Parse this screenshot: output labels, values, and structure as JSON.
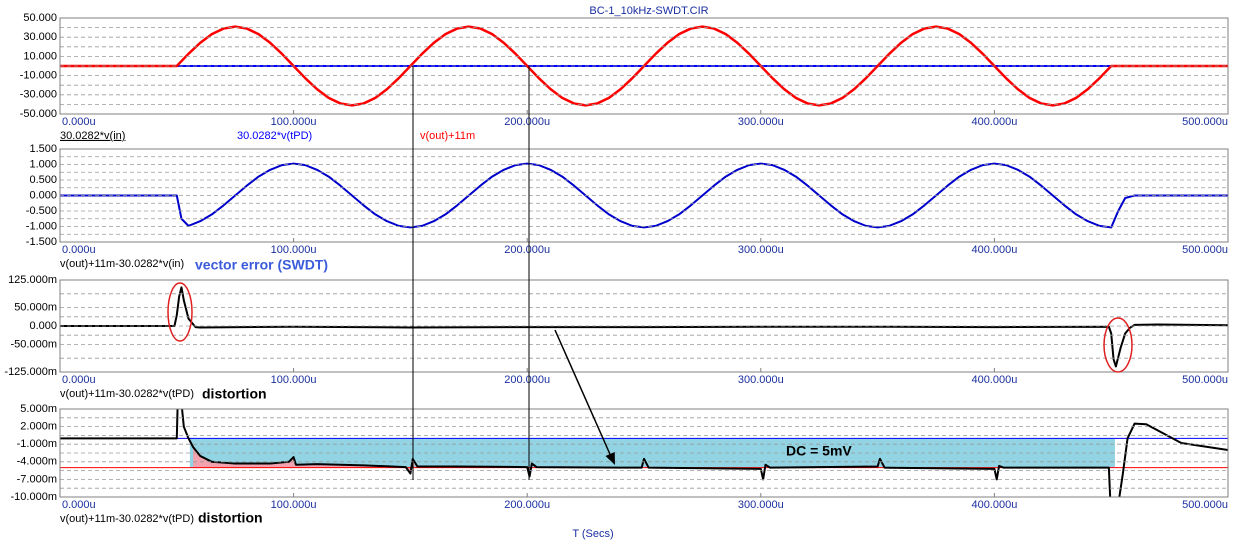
{
  "chart_data": [
    {
      "type": "line",
      "title": "BC-1_10kHz-SWDT.CIR",
      "xlim": [
        0,
        500
      ],
      "xticks": [
        {
          "value": 0,
          "label": "0.000u"
        },
        {
          "value": 100,
          "label": "100.000u"
        },
        {
          "value": 200,
          "label": "200.000u"
        },
        {
          "value": 300,
          "label": "300.000u"
        },
        {
          "value": 400,
          "label": "400.000u"
        },
        {
          "value": 500,
          "label": "500.000u"
        }
      ],
      "ylim": [
        -50,
        50
      ],
      "yticks": [
        {
          "value": 50,
          "label": "50.000"
        },
        {
          "value": 30,
          "label": "30.000"
        },
        {
          "value": 10,
          "label": "10.000"
        },
        {
          "value": -10,
          "label": "-10.000"
        },
        {
          "value": -30,
          "label": "-30.000"
        },
        {
          "value": -50,
          "label": "-50.000"
        }
      ],
      "grid": true,
      "series": [
        {
          "name": "30.0282*v(in)",
          "color": "#000000",
          "x": [
            0,
            50
          ],
          "values": [
            0,
            0
          ]
        },
        {
          "name": "30.0282*v(tPD)",
          "color": "#0000ff",
          "x": [
            0,
            452
          ],
          "values": [
            0,
            0
          ]
        },
        {
          "name": "v(out)+11m",
          "color": "#ff0000",
          "x": [
            0,
            50,
            55,
            60,
            65,
            70,
            75,
            80,
            85,
            90,
            95,
            100,
            105,
            110,
            115,
            120,
            125,
            130,
            135,
            140,
            145,
            150,
            155,
            160,
            165,
            170,
            175,
            180,
            185,
            190,
            195,
            200,
            205,
            210,
            215,
            220,
            225,
            230,
            235,
            240,
            245,
            250,
            255,
            260,
            265,
            270,
            275,
            280,
            285,
            290,
            295,
            300,
            305,
            310,
            315,
            320,
            325,
            330,
            335,
            340,
            345,
            350,
            355,
            360,
            365,
            370,
            375,
            380,
            385,
            390,
            395,
            400,
            405,
            410,
            415,
            420,
            425,
            430,
            435,
            440,
            445,
            450,
            500
          ],
          "values": [
            0,
            0,
            12.7,
            24.1,
            33.2,
            39.0,
            41,
            39.0,
            33.2,
            24.1,
            12.7,
            0,
            -12.7,
            -24.1,
            -33.2,
            -39.0,
            -41,
            -39.0,
            -33.2,
            -24.1,
            -12.7,
            0,
            12.7,
            24.1,
            33.2,
            39.0,
            41,
            39.0,
            33.2,
            24.1,
            12.7,
            0,
            -12.7,
            -24.1,
            -33.2,
            -39.0,
            -41,
            -39.0,
            -33.2,
            -24.1,
            -12.7,
            0,
            12.7,
            24.1,
            33.2,
            39.0,
            41,
            39.0,
            33.2,
            24.1,
            12.7,
            0,
            -12.7,
            -24.1,
            -33.2,
            -39.0,
            -41,
            -39.0,
            -33.2,
            -24.1,
            -12.7,
            0,
            12.7,
            24.1,
            33.2,
            39.0,
            41,
            39.0,
            33.2,
            24.1,
            12.7,
            0,
            -12.7,
            -24.1,
            -33.2,
            -39.0,
            -41,
            -39.0,
            -33.2,
            -24.1,
            -12.7,
            0,
            0
          ]
        }
      ]
    },
    {
      "type": "line",
      "xlim": [
        0,
        500
      ],
      "xticks": [
        {
          "value": 0,
          "label": "0.000u"
        },
        {
          "value": 100,
          "label": "100.000u"
        },
        {
          "value": 200,
          "label": "200.000u"
        },
        {
          "value": 300,
          "label": "300.000u"
        },
        {
          "value": 400,
          "label": "400.000u"
        },
        {
          "value": 500,
          "label": "500.000u"
        }
      ],
      "ylim": [
        -1.5,
        1.5
      ],
      "yticks": [
        {
          "value": 1.5,
          "label": "1.500"
        },
        {
          "value": 1,
          "label": "1.000"
        },
        {
          "value": 0.5,
          "label": "0.500"
        },
        {
          "value": 0,
          "label": "0.000"
        },
        {
          "value": -0.5,
          "label": "-0.500"
        },
        {
          "value": -1,
          "label": "-1.000"
        },
        {
          "value": -1.5,
          "label": "-1.500"
        }
      ],
      "grid": true,
      "annotations": [
        {
          "text": "vector error (SWDT)",
          "color": "#3b5bdb"
        }
      ],
      "series": [
        {
          "name": "v(out)+11m-30.0282*v(in)",
          "color": "#0000cc",
          "x": [
            0,
            50,
            52,
            55,
            60,
            65,
            70,
            75,
            80,
            85,
            90,
            95,
            100,
            105,
            110,
            115,
            120,
            125,
            130,
            135,
            140,
            145,
            150,
            155,
            160,
            165,
            170,
            175,
            180,
            185,
            190,
            195,
            200,
            205,
            210,
            215,
            220,
            225,
            230,
            235,
            240,
            245,
            250,
            255,
            260,
            265,
            270,
            275,
            280,
            285,
            290,
            295,
            300,
            305,
            310,
            315,
            320,
            325,
            330,
            335,
            340,
            345,
            350,
            355,
            360,
            365,
            370,
            375,
            380,
            385,
            390,
            395,
            400,
            405,
            410,
            415,
            420,
            425,
            430,
            435,
            440,
            445,
            450,
            453,
            456,
            460,
            500
          ],
          "values": [
            0,
            0,
            -0.75,
            -0.98,
            -0.83,
            -0.61,
            -0.32,
            0,
            0.32,
            0.61,
            0.83,
            0.98,
            1.03,
            0.98,
            0.83,
            0.61,
            0.32,
            0,
            -0.32,
            -0.61,
            -0.83,
            -0.98,
            -1.03,
            -0.98,
            -0.83,
            -0.61,
            -0.32,
            0,
            0.32,
            0.61,
            0.83,
            0.98,
            1.03,
            0.98,
            0.83,
            0.61,
            0.32,
            0,
            -0.32,
            -0.61,
            -0.83,
            -0.98,
            -1.03,
            -0.98,
            -0.83,
            -0.61,
            -0.32,
            0,
            0.32,
            0.61,
            0.83,
            0.98,
            1.03,
            0.98,
            0.83,
            0.61,
            0.32,
            0,
            -0.32,
            -0.61,
            -0.83,
            -0.98,
            -1.03,
            -0.98,
            -0.83,
            -0.61,
            -0.32,
            0,
            0.32,
            0.61,
            0.83,
            0.98,
            1.03,
            0.98,
            0.83,
            0.61,
            0.32,
            0,
            -0.32,
            -0.61,
            -0.83,
            -0.98,
            -1.03,
            -0.5,
            -0.08,
            0,
            0
          ]
        }
      ]
    },
    {
      "type": "line",
      "xlim": [
        0,
        500
      ],
      "xticks": [
        {
          "value": 0,
          "label": "0.000u"
        },
        {
          "value": 100,
          "label": "100.000u"
        },
        {
          "value": 200,
          "label": "200.000u"
        },
        {
          "value": 300,
          "label": "300.000u"
        },
        {
          "value": 400,
          "label": "400.000u"
        },
        {
          "value": 500,
          "label": "500.000u"
        }
      ],
      "ylim": [
        -125,
        125
      ],
      "yticks": [
        {
          "value": 125,
          "label": "125.000m"
        },
        {
          "value": 50,
          "label": "50.000m"
        },
        {
          "value": 0,
          "label": "0.000"
        },
        {
          "value": -50,
          "label": "-50.000m"
        },
        {
          "value": -125,
          "label": "-125.000m"
        }
      ],
      "grid": true,
      "annotations": [
        {
          "text": "distortion",
          "color": "#000000"
        }
      ],
      "series": [
        {
          "name": "v(out)+11m-30.0282*v(tPD)",
          "color": "#000000",
          "x": [
            0,
            49,
            50,
            51,
            52,
            53,
            55,
            58,
            60,
            100,
            150,
            200,
            250,
            300,
            350,
            400,
            449,
            450,
            451,
            452,
            454,
            456,
            458,
            460,
            470,
            500
          ],
          "values": [
            0,
            0,
            30,
            80,
            105,
            70,
            20,
            -3,
            -4,
            -2,
            -4,
            -3,
            -3,
            -2,
            -2,
            -3,
            -2,
            -20,
            -90,
            -110,
            -60,
            -20,
            -5,
            3,
            4,
            2
          ]
        }
      ]
    },
    {
      "type": "line",
      "xlabel": "T (Secs)",
      "xlim": [
        0,
        500
      ],
      "xticks": [
        {
          "value": 0,
          "label": "0.000u"
        },
        {
          "value": 100,
          "label": "100.000u"
        },
        {
          "value": 200,
          "label": "200.000u"
        },
        {
          "value": 300,
          "label": "300.000u"
        },
        {
          "value": 400,
          "label": "400.000u"
        },
        {
          "value": 500,
          "label": "500.000u"
        }
      ],
      "ylim": [
        -10,
        5
      ],
      "yticks": [
        {
          "value": 5,
          "label": "5.000m"
        },
        {
          "value": 2,
          "label": "2.000m"
        },
        {
          "value": -1,
          "label": "-1.000m"
        },
        {
          "value": -4,
          "label": "-4.000m"
        },
        {
          "value": -7,
          "label": "-7.000m"
        },
        {
          "value": -10,
          "label": "-10.000m"
        }
      ],
      "grid": true,
      "annotations": [
        {
          "text": "distortion",
          "color": "#000000"
        },
        {
          "text": "DC = 5mV",
          "color": "#000000"
        }
      ],
      "bands": [
        {
          "x": [
            55.6,
            451.6
          ],
          "y": [
            0,
            -5
          ],
          "color": "#92d4e4"
        }
      ],
      "hlines": [
        {
          "value": 0,
          "color": "#0000ff"
        },
        {
          "value": -5,
          "color": "#ff0000"
        }
      ],
      "fill_to": {
        "series": 0,
        "x": [
          57,
          152
        ],
        "y": -5,
        "color": "#f2a3ae"
      },
      "series": [
        {
          "name": "v(out)+11m-30.0282*v(tPD)",
          "color": "#000000",
          "x": [
            0,
            50,
            50.5,
            51.5,
            53,
            55,
            57,
            60,
            65,
            75,
            90,
            98,
            100,
            101,
            110,
            130,
            148,
            150,
            151,
            153,
            170,
            200,
            201,
            202,
            204,
            240,
            249,
            250,
            252,
            300,
            301,
            302,
            304,
            350,
            351,
            353,
            400,
            401,
            402,
            404,
            440,
            449,
            450,
            452,
            455,
            457,
            460,
            465,
            480,
            500
          ],
          "values": [
            0,
            0,
            8,
            8,
            2,
            0,
            -1.5,
            -3,
            -4,
            -4.3,
            -4.3,
            -4.0,
            -3.2,
            -4.5,
            -4.4,
            -4.6,
            -4.9,
            -6.0,
            -3.5,
            -4.8,
            -4.8,
            -4.9,
            -6.5,
            -4.3,
            -4.9,
            -5.0,
            -5.0,
            -3.5,
            -5.0,
            -5.2,
            -7,
            -4.5,
            -5.0,
            -4.8,
            -3.5,
            -5,
            -5.2,
            -7,
            -4.7,
            -5,
            -5.0,
            -5.0,
            -14,
            -14,
            -6,
            0,
            2.5,
            2.4,
            -0.8,
            -2
          ]
        }
      ]
    }
  ]
}
